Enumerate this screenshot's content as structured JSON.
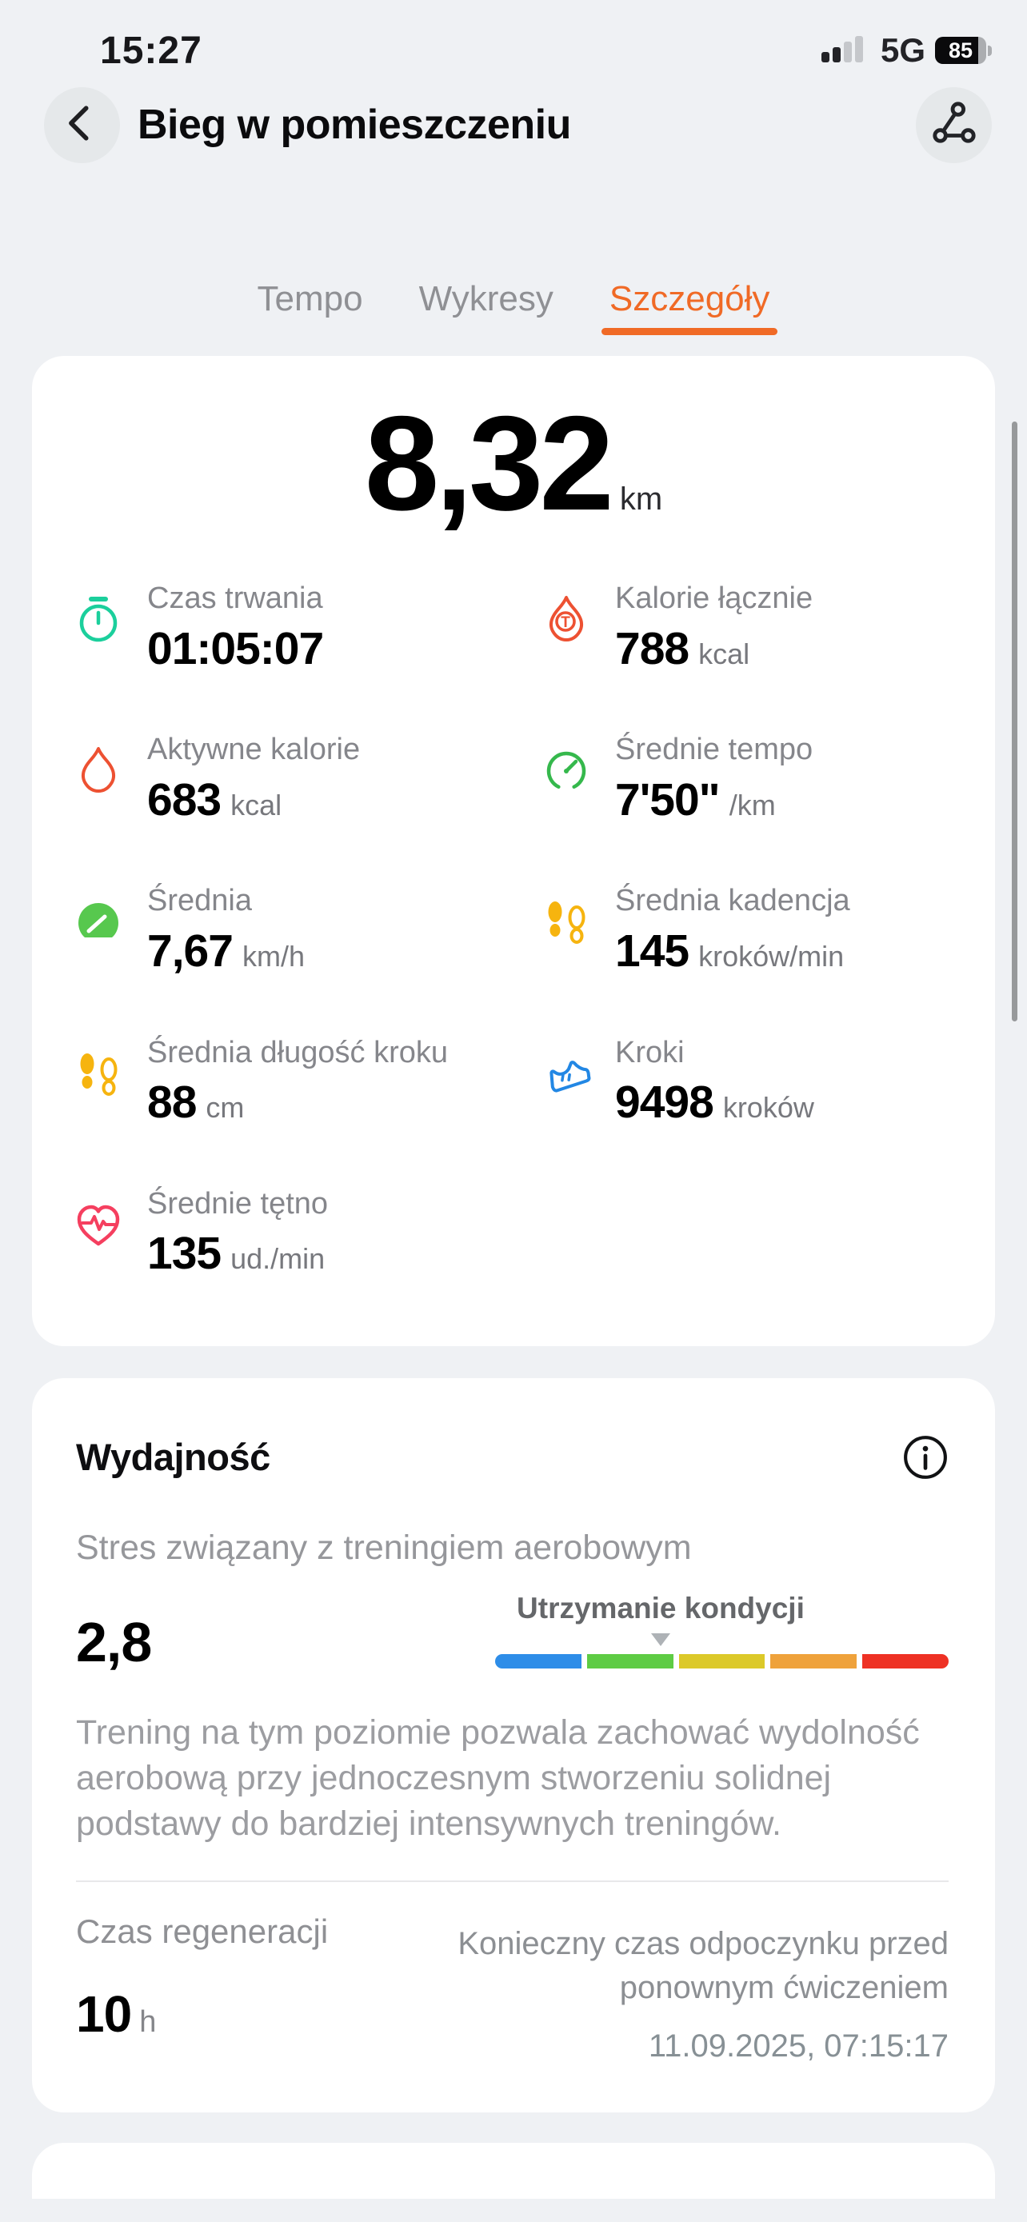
{
  "theme": {
    "accent_color": "#F06A26",
    "page_background": "#EFF1F4",
    "card_background": "#FFFFFF"
  },
  "status_bar": {
    "time": "15:27",
    "network": "5G",
    "battery_percent": 85,
    "battery_label": "85"
  },
  "header": {
    "title": "Bieg w pomieszczeniu"
  },
  "tabs": [
    {
      "label": "Tempo"
    },
    {
      "label": "Wykresy"
    },
    {
      "label": "Szczegóły"
    }
  ],
  "active_tab": "Szczegóły",
  "summary": {
    "distance_value": "8,32",
    "distance_unit": "km"
  },
  "stats": {
    "items": [
      {
        "icon": "stopwatch",
        "icon_color": "#1BCF9C",
        "label": "Czas trwania",
        "value": "01:05:07",
        "unit": ""
      },
      {
        "icon": "flame-t",
        "icon_color": "#ED5132",
        "label": "Kalorie łącznie",
        "value": "788",
        "unit": "kcal"
      },
      {
        "icon": "flame",
        "icon_color": "#ED5132",
        "label": "Aktywne kalorie",
        "value": "683",
        "unit": "kcal"
      },
      {
        "icon": "gauge-outline",
        "icon_color": "#35B84C",
        "label": "Średnie tempo",
        "value": "7'50\"",
        "unit": "/km"
      },
      {
        "icon": "gauge-filled",
        "icon_color": "#57C84E",
        "label": "Średnia",
        "value": "7,67",
        "unit": "km/h"
      },
      {
        "icon": "footprints",
        "icon_color": "#F6B40F",
        "label": "Średnia kadencja",
        "value": "145",
        "unit": "kroków/min"
      },
      {
        "icon": "footprints",
        "icon_color": "#F6B40F",
        "label": "Średnia długość kroku",
        "value": "88",
        "unit": "cm"
      },
      {
        "icon": "running-shoe",
        "icon_color": "#2287E4",
        "label": "Kroki",
        "value": "9498",
        "unit": "kroków"
      },
      {
        "icon": "heart-ecg",
        "icon_color": "#F53F5F",
        "label": "Średnie tętno",
        "value": "135",
        "unit": "ud./min"
      }
    ]
  },
  "performance": {
    "title": "Wydajność",
    "stress_label": "Stres związany z treningiem aerobowym",
    "stress_value": "2,8",
    "zone_label": "Utrzymanie kondycji",
    "pointer_position_pct": 36.5,
    "zone_colors": [
      "#2E8DE8",
      "#5ECC44",
      "#DCC929",
      "#EFA23B",
      "#EE3124"
    ],
    "description": "Trening na tym poziomie pozwala zachować wydolność aerobową przy jednoczesnym stworzeniu solidnej podstawy do bardziej intensywnych treningów.",
    "recovery_label": "Czas regeneracji",
    "recovery_value": "10",
    "recovery_unit": "h",
    "rest_note": "Konieczny czas odpoczynku przed ponownym ćwiczeniem",
    "rest_date": "11.09.2025, 07:15:17"
  }
}
